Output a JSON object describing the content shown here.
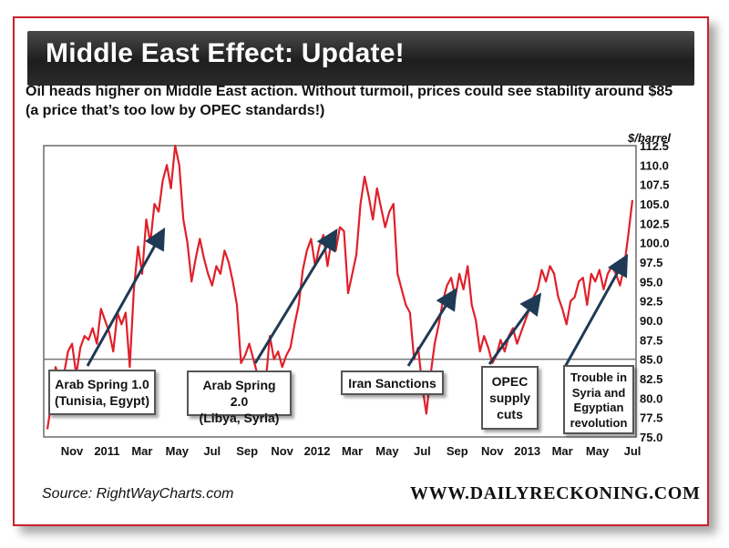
{
  "header": {
    "title": "Middle East Effect: Update!",
    "subtitle": "Oil heads higher on Middle East action.  Without turmoil, prices could see stability around $85 (a price that’s too low by OPEC standards!)"
  },
  "footer": {
    "source": "Source: RightWayCharts.com",
    "brand": "WWW.DAILYRECKONING.COM"
  },
  "annotations": [
    {
      "line1": "Arab Spring 1.0",
      "line2": "(Tunisia, Egypt)",
      "line3": ""
    },
    {
      "line1": "Arab Spring 2.0",
      "line2": "(Libya, Syria)",
      "line3": ""
    },
    {
      "line1": "Iran Sanctions",
      "line2": "",
      "line3": ""
    },
    {
      "line1": "OPEC",
      "line2": "supply",
      "line3": "cuts"
    },
    {
      "line1": "Trouble in",
      "line2": "Syria and",
      "line3": "Egyptian",
      "line4": "revolution"
    }
  ],
  "chart_data": {
    "type": "line",
    "title": "Middle East Effect: Update!",
    "ylabel": "$/barrel",
    "ylim": [
      75.0,
      112.5
    ],
    "yticks": [
      "112.5",
      "110.0",
      "107.5",
      "105.0",
      "102.5",
      "100.0",
      "97.5",
      "95.0",
      "92.5",
      "90.0",
      "87.5",
      "85.0",
      "82.5",
      "80.0",
      "77.5",
      "75.0"
    ],
    "xticks": [
      "Nov",
      "2011",
      "Mar",
      "May",
      "Jul",
      "Sep",
      "Nov",
      "2012",
      "Mar",
      "May",
      "Jul",
      "Sep",
      "Nov",
      "2013",
      "Mar",
      "May",
      "Jul"
    ],
    "reference_line": 85.0,
    "series": [
      {
        "color": "#e0202a",
        "values": [
          76.0,
          79.5,
          84.0,
          82.5,
          83.0,
          86.0,
          87.0,
          83.0,
          86.5,
          88.0,
          87.5,
          89.0,
          87.0,
          91.5,
          90.0,
          88.5,
          86.0,
          91.0,
          89.5,
          91.0,
          84.0,
          94.0,
          99.5,
          96.0,
          103.0,
          100.0,
          105.0,
          104.0,
          108.0,
          110.0,
          107.0,
          112.5,
          110.0,
          103.0,
          100.0,
          95.0,
          98.0,
          100.5,
          98.0,
          96.0,
          94.5,
          97.0,
          96.0,
          99.0,
          97.5,
          95.0,
          92.0,
          84.5,
          85.5,
          87.0,
          85.0,
          83.0,
          79.5,
          82.0,
          88.0,
          85.0,
          86.0,
          84.0,
          85.5,
          86.5,
          89.5,
          92.0,
          96.5,
          99.0,
          100.5,
          97.0,
          99.5,
          101.0,
          97.0,
          100.5,
          99.0,
          102.0,
          101.5,
          93.5,
          96.0,
          98.5,
          105.0,
          108.5,
          106.0,
          103.0,
          107.0,
          104.5,
          102.0,
          104.0,
          105.0,
          96.0,
          94.0,
          92.0,
          91.0,
          85.0,
          86.5,
          81.5,
          78.0,
          83.0,
          87.0,
          89.5,
          92.5,
          94.5,
          95.5,
          93.0,
          96.0,
          94.0,
          97.0,
          92.0,
          90.0,
          86.0,
          88.0,
          86.5,
          84.5,
          85.5,
          87.5,
          86.0,
          88.0,
          89.0,
          87.0,
          88.5,
          90.0,
          91.5,
          93.0,
          94.0,
          96.5,
          95.0,
          97.0,
          96.0,
          93.0,
          91.5,
          89.5,
          92.5,
          93.0,
          95.0,
          95.5,
          92.0,
          96.0,
          95.0,
          96.5,
          94.0,
          96.0,
          97.0,
          96.0,
          94.5,
          97.0,
          101.0,
          105.5
        ]
      }
    ]
  }
}
